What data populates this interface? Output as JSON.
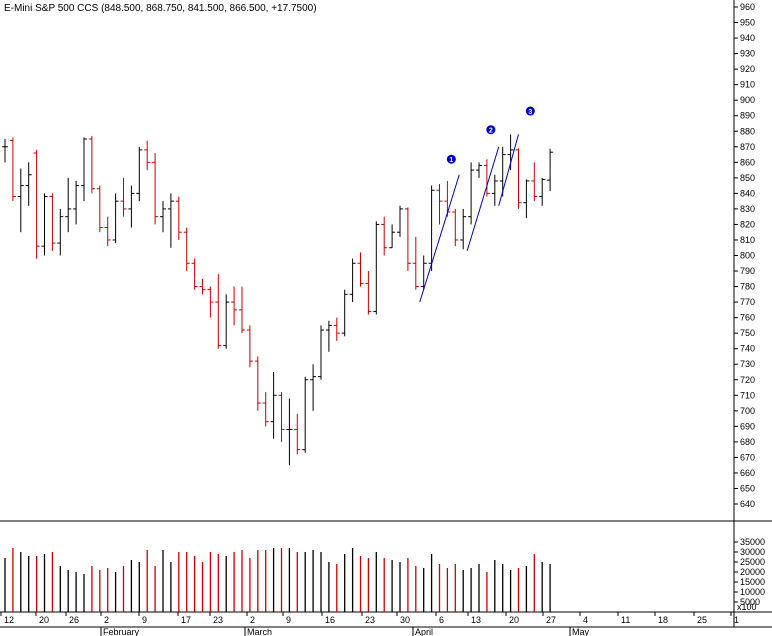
{
  "window": {
    "title": "E-Mini S&P 500 CCS (848.500, 868.750, 841.500, 866.500, +17.7500)"
  },
  "chart_data": {
    "type": "ohlc_bar",
    "title": "E-Mini S&P 500 CCS (848.500, 868.750, 841.500, 866.500, +17.7500)",
    "colors": {
      "up": "#000000",
      "down": "#cc0000",
      "trendline": "#0000cc",
      "marker": "#0000cc"
    },
    "price_axis": {
      "ylim": [
        630,
        970
      ],
      "ticks": [
        640,
        650,
        660,
        670,
        680,
        690,
        700,
        710,
        720,
        730,
        740,
        750,
        760,
        770,
        780,
        790,
        800,
        810,
        820,
        830,
        840,
        850,
        860,
        870,
        880,
        890,
        900,
        910,
        920,
        930,
        940,
        950,
        960
      ]
    },
    "volume_axis": {
      "ylim": [
        0,
        40000
      ],
      "ticks": [
        5000,
        10000,
        15000,
        20000,
        25000,
        30000,
        35000
      ],
      "tick_labels": [
        "5000",
        "10000",
        "15000",
        "20000",
        "25000",
        "30000",
        "35000"
      ],
      "unit_label": "x100"
    },
    "x_axis": {
      "day_ticks": [
        "12",
        "20",
        "26",
        "2",
        "9",
        "17",
        "23",
        "2",
        "9",
        "16",
        "23",
        "30",
        "6",
        "13",
        "20",
        "27",
        "4",
        "11",
        "18",
        "25",
        "1"
      ],
      "month_labels": [
        "February",
        "March",
        "April",
        "May"
      ]
    },
    "bars": [
      {
        "o": 870,
        "h": 875,
        "l": 860,
        "c": 870,
        "v": 27000
      },
      {
        "o": 874,
        "h": 876,
        "l": 835,
        "c": 838,
        "v": 32000
      },
      {
        "o": 838,
        "h": 856,
        "l": 815,
        "c": 845,
        "v": 30000
      },
      {
        "o": 845,
        "h": 860,
        "l": 832,
        "c": 852,
        "v": 28000
      },
      {
        "o": 866,
        "h": 868,
        "l": 798,
        "c": 806,
        "v": 28000
      },
      {
        "o": 806,
        "h": 840,
        "l": 800,
        "c": 838,
        "v": 29000
      },
      {
        "o": 838,
        "h": 840,
        "l": 803,
        "c": 808,
        "v": 30000
      },
      {
        "o": 808,
        "h": 830,
        "l": 800,
        "c": 825,
        "v": 23000
      },
      {
        "o": 825,
        "h": 850,
        "l": 815,
        "c": 830,
        "v": 21000
      },
      {
        "o": 830,
        "h": 848,
        "l": 820,
        "c": 845,
        "v": 20000
      },
      {
        "o": 845,
        "h": 876,
        "l": 835,
        "c": 875,
        "v": 19000
      },
      {
        "o": 875,
        "h": 877,
        "l": 840,
        "c": 843,
        "v": 23000
      },
      {
        "o": 843,
        "h": 845,
        "l": 815,
        "c": 818,
        "v": 21000
      },
      {
        "o": 818,
        "h": 825,
        "l": 806,
        "c": 810,
        "v": 22000
      },
      {
        "o": 810,
        "h": 840,
        "l": 808,
        "c": 835,
        "v": 20000
      },
      {
        "o": 835,
        "h": 850,
        "l": 825,
        "c": 830,
        "v": 23000
      },
      {
        "o": 830,
        "h": 845,
        "l": 818,
        "c": 840,
        "v": 26000
      },
      {
        "o": 840,
        "h": 870,
        "l": 835,
        "c": 868,
        "v": 25000
      },
      {
        "o": 868,
        "h": 874,
        "l": 855,
        "c": 860,
        "v": 31000
      },
      {
        "o": 860,
        "h": 866,
        "l": 820,
        "c": 825,
        "v": 23000
      },
      {
        "o": 825,
        "h": 835,
        "l": 815,
        "c": 830,
        "v": 31000
      },
      {
        "o": 830,
        "h": 840,
        "l": 805,
        "c": 835,
        "v": 25000
      },
      {
        "o": 835,
        "h": 838,
        "l": 810,
        "c": 815,
        "v": 30000
      },
      {
        "o": 815,
        "h": 818,
        "l": 790,
        "c": 795,
        "v": 30000
      },
      {
        "o": 795,
        "h": 798,
        "l": 778,
        "c": 780,
        "v": 28000
      },
      {
        "o": 780,
        "h": 785,
        "l": 775,
        "c": 778,
        "v": 25000
      },
      {
        "o": 778,
        "h": 780,
        "l": 760,
        "c": 770,
        "v": 30000
      },
      {
        "o": 770,
        "h": 788,
        "l": 740,
        "c": 742,
        "v": 29000
      },
      {
        "o": 742,
        "h": 775,
        "l": 740,
        "c": 770,
        "v": 28000
      },
      {
        "o": 770,
        "h": 780,
        "l": 755,
        "c": 765,
        "v": 30000
      },
      {
        "o": 765,
        "h": 780,
        "l": 750,
        "c": 752,
        "v": 31000
      },
      {
        "o": 752,
        "h": 755,
        "l": 728,
        "c": 732,
        "v": 27000
      },
      {
        "o": 732,
        "h": 735,
        "l": 700,
        "c": 705,
        "v": 31000
      },
      {
        "o": 705,
        "h": 712,
        "l": 690,
        "c": 693,
        "v": 31000
      },
      {
        "o": 693,
        "h": 725,
        "l": 682,
        "c": 710,
        "v": 32000
      },
      {
        "o": 710,
        "h": 712,
        "l": 680,
        "c": 688,
        "v": 32000
      },
      {
        "o": 688,
        "h": 708,
        "l": 665,
        "c": 688,
        "v": 32000
      },
      {
        "o": 688,
        "h": 698,
        "l": 672,
        "c": 675,
        "v": 30000
      },
      {
        "o": 675,
        "h": 722,
        "l": 673,
        "c": 720,
        "v": 30000
      },
      {
        "o": 720,
        "h": 730,
        "l": 700,
        "c": 722,
        "v": 31000
      },
      {
        "o": 722,
        "h": 755,
        "l": 720,
        "c": 752,
        "v": 30000
      },
      {
        "o": 752,
        "h": 758,
        "l": 738,
        "c": 755,
        "v": 25000
      },
      {
        "o": 755,
        "h": 760,
        "l": 745,
        "c": 750,
        "v": 24000
      },
      {
        "o": 750,
        "h": 778,
        "l": 748,
        "c": 775,
        "v": 29000
      },
      {
        "o": 775,
        "h": 798,
        "l": 770,
        "c": 795,
        "v": 32000
      },
      {
        "o": 795,
        "h": 802,
        "l": 780,
        "c": 782,
        "v": 28000
      },
      {
        "o": 782,
        "h": 790,
        "l": 762,
        "c": 764,
        "v": 27000
      },
      {
        "o": 764,
        "h": 822,
        "l": 762,
        "c": 820,
        "v": 30000
      },
      {
        "o": 820,
        "h": 825,
        "l": 800,
        "c": 805,
        "v": 27000
      },
      {
        "o": 805,
        "h": 820,
        "l": 805,
        "c": 815,
        "v": 26000
      },
      {
        "o": 815,
        "h": 832,
        "l": 812,
        "c": 830,
        "v": 25000
      },
      {
        "o": 830,
        "h": 831,
        "l": 790,
        "c": 795,
        "v": 27000
      },
      {
        "o": 795,
        "h": 812,
        "l": 778,
        "c": 780,
        "v": 23000
      },
      {
        "o": 780,
        "h": 800,
        "l": 778,
        "c": 795,
        "v": 22000
      },
      {
        "o": 795,
        "h": 845,
        "l": 790,
        "c": 842,
        "v": 29000
      },
      {
        "o": 842,
        "h": 846,
        "l": 820,
        "c": 835,
        "v": 24000
      },
      {
        "o": 835,
        "h": 848,
        "l": 825,
        "c": 828,
        "v": 22000
      },
      {
        "o": 828,
        "h": 830,
        "l": 806,
        "c": 810,
        "v": 24000
      },
      {
        "o": 810,
        "h": 830,
        "l": 804,
        "c": 825,
        "v": 21000
      },
      {
        "o": 825,
        "h": 860,
        "l": 820,
        "c": 855,
        "v": 22000
      },
      {
        "o": 855,
        "h": 860,
        "l": 850,
        "c": 858,
        "v": 24000
      },
      {
        "o": 858,
        "h": 862,
        "l": 838,
        "c": 840,
        "v": 20000
      },
      {
        "o": 840,
        "h": 852,
        "l": 832,
        "c": 848,
        "v": 26000
      },
      {
        "o": 848,
        "h": 870,
        "l": 838,
        "c": 865,
        "v": 24000
      },
      {
        "o": 865,
        "h": 878,
        "l": 855,
        "c": 868,
        "v": 21000
      },
      {
        "o": 868,
        "h": 869,
        "l": 830,
        "c": 834,
        "v": 22000
      },
      {
        "o": 834,
        "h": 849,
        "l": 824,
        "c": 848,
        "v": 23000
      },
      {
        "o": 848,
        "h": 860,
        "l": 835,
        "c": 838,
        "v": 29000
      },
      {
        "o": 838,
        "h": 850,
        "l": 832,
        "c": 849,
        "v": 25000
      },
      {
        "o": 848.5,
        "h": 868.75,
        "l": 841.5,
        "c": 866.5,
        "v": 24000
      }
    ],
    "trendlines": [
      {
        "from": {
          "bar": 52.5,
          "price": 770
        },
        "to": {
          "bar": 57.5,
          "price": 852
        }
      },
      {
        "from": {
          "bar": 58.5,
          "price": 803
        },
        "to": {
          "bar": 62.5,
          "price": 870
        }
      },
      {
        "from": {
          "bar": 62.5,
          "price": 832
        },
        "to": {
          "bar": 65.0,
          "price": 878
        }
      }
    ],
    "markers": [
      {
        "label": "1",
        "bar": 56.5,
        "price": 862
      },
      {
        "label": "2",
        "bar": 61.5,
        "price": 881
      },
      {
        "label": "3",
        "bar": 66.5,
        "price": 893
      }
    ],
    "grid": false,
    "legend": "none"
  }
}
